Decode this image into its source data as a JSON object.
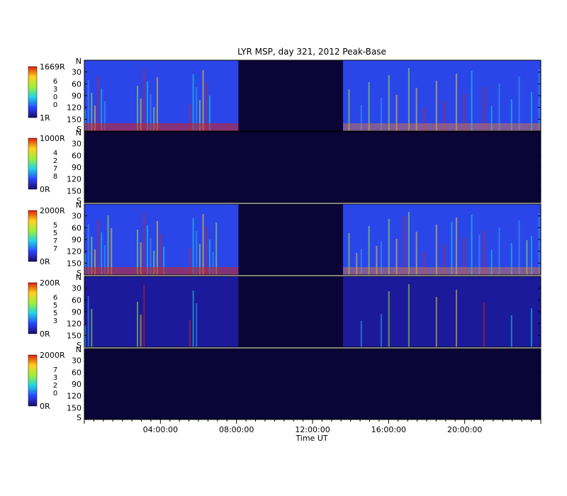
{
  "chart_data": {
    "type": "heatmap",
    "title": "LYR MSP, day 321, 2012 Peak-Base",
    "xlabel": "Time UT",
    "x_ticks": [
      "04:00:00",
      "08:00:00",
      "12:00:00",
      "16:00:00",
      "20:00:00"
    ],
    "x_range_hours": [
      0,
      24
    ],
    "y_ticks": [
      "30",
      "60",
      "90",
      "120",
      "150"
    ],
    "y_end_labels": [
      "N",
      "S"
    ],
    "y_range_deg": [
      0,
      180
    ],
    "colormap": "rainbow",
    "data_gap_hours": [
      8.1,
      13.6
    ],
    "panels": [
      {
        "name": "panel-1",
        "cb_max": "1669R",
        "cb_min": "1R",
        "cb_digits": [
          "6",
          "3",
          "0",
          "0"
        ],
        "mean_intensity": 0.35
      },
      {
        "name": "panel-2",
        "cb_max": "1000R",
        "cb_min": "0R",
        "cb_digits": [
          "4",
          "2",
          "7",
          "8"
        ],
        "mean_intensity": 0.0
      },
      {
        "name": "panel-3",
        "cb_max": "2000R",
        "cb_min": "0R",
        "cb_digits": [
          "5",
          "5",
          "7",
          "7"
        ],
        "mean_intensity": 0.45
      },
      {
        "name": "panel-4",
        "cb_max": "200R",
        "cb_min": "0R",
        "cb_digits": [
          "6",
          "5",
          "5",
          "3"
        ],
        "mean_intensity": 0.15
      },
      {
        "name": "panel-5",
        "cb_max": "2000R",
        "cb_min": "0R",
        "cb_digits": [
          "7",
          "3",
          "2",
          "0"
        ],
        "mean_intensity": 0.0
      }
    ]
  }
}
